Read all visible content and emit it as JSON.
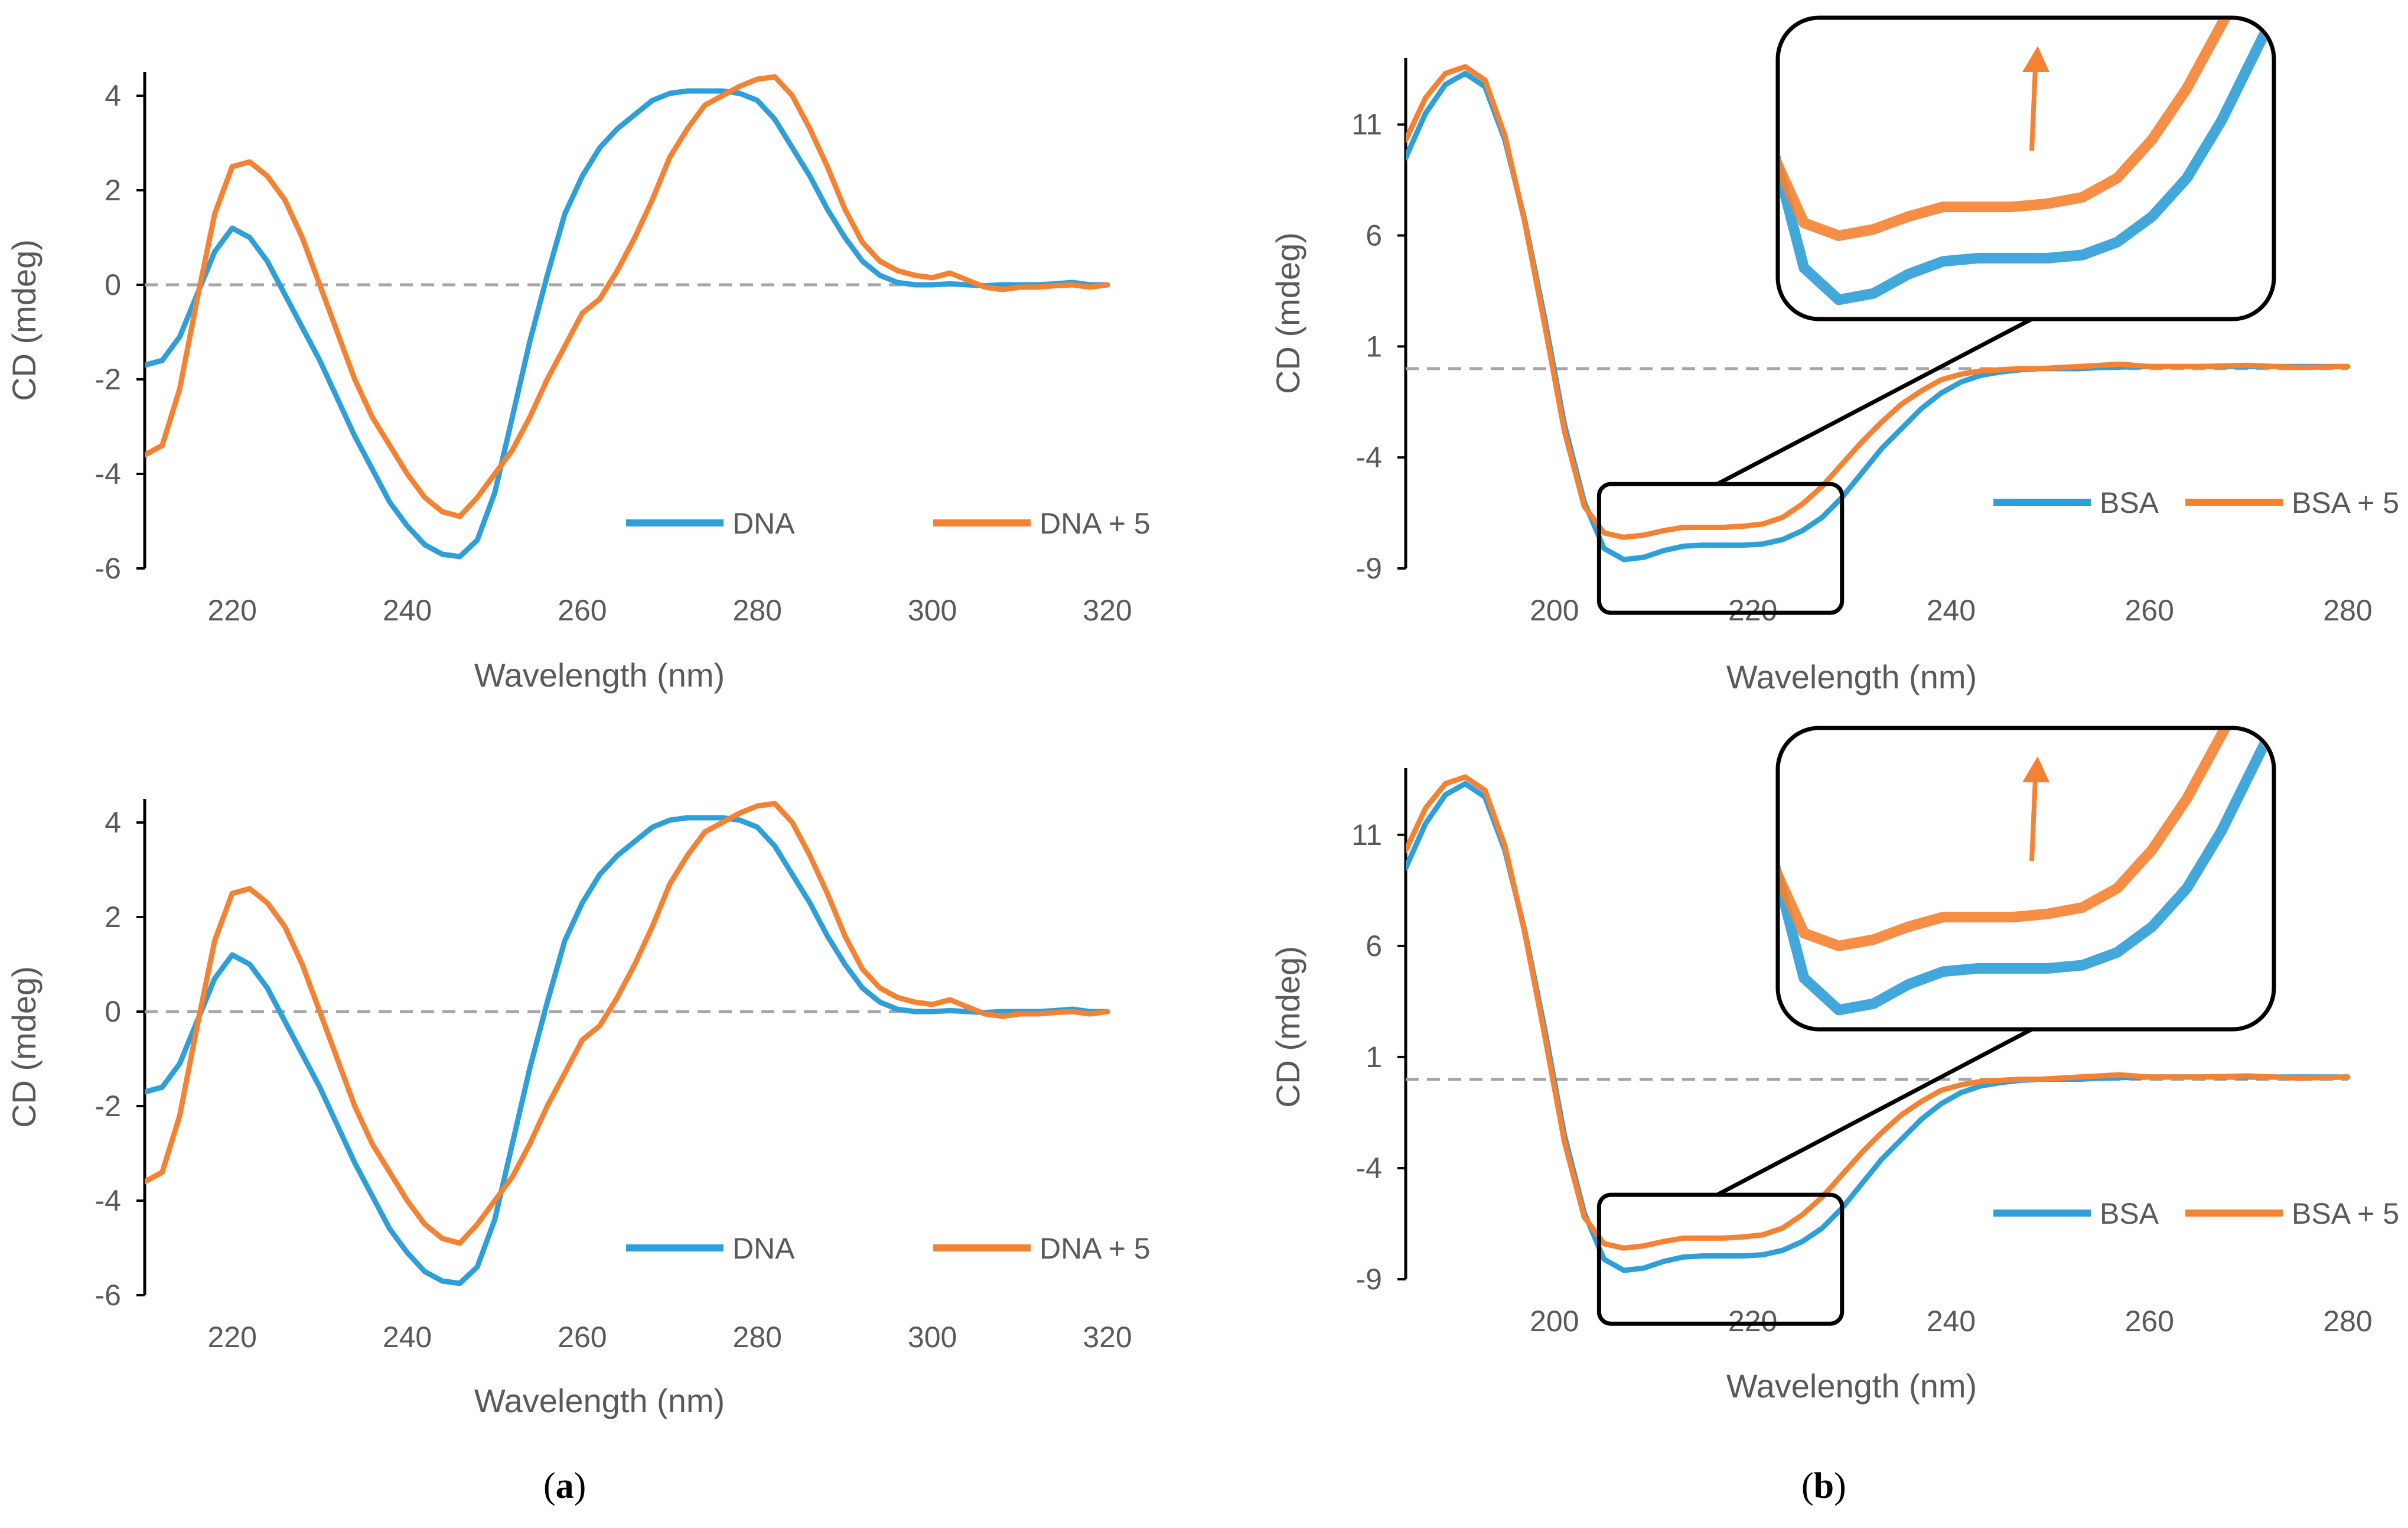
{
  "colors": {
    "series1": "#2E9FD8",
    "series2": "#F58232",
    "axis": "#000000",
    "zero_line": "#A6A6A6",
    "text": "#595959"
  },
  "panel_labels": [
    "a",
    "b"
  ],
  "chart_data": [
    {
      "type": "line",
      "panel": "a-top",
      "xlabel": "Wavelength (nm)",
      "ylabel": "CD (mdeg)",
      "xlim": [
        210,
        320
      ],
      "ylim": [
        -6,
        4.5
      ],
      "xticks": [
        220,
        240,
        260,
        280,
        300,
        320
      ],
      "yticks": [
        -6,
        -4,
        -2,
        0,
        2,
        4
      ],
      "zero_line": true,
      "legend_position": "bottom-right",
      "series": [
        {
          "name": "DNA",
          "x": [
            210,
            212,
            214,
            216,
            218,
            220,
            222,
            224,
            226,
            228,
            230,
            232,
            234,
            236,
            238,
            240,
            242,
            244,
            246,
            248,
            250,
            252,
            254,
            256,
            258,
            260,
            262,
            264,
            266,
            268,
            270,
            272,
            274,
            276,
            278,
            280,
            282,
            284,
            286,
            288,
            290,
            292,
            294,
            296,
            298,
            300,
            302,
            304,
            306,
            308,
            310,
            312,
            314,
            316,
            318,
            320
          ],
          "y": [
            -1.7,
            -1.6,
            -1.1,
            -0.2,
            0.7,
            1.2,
            1.0,
            0.5,
            -0.2,
            -0.9,
            -1.6,
            -2.4,
            -3.2,
            -3.9,
            -4.6,
            -5.1,
            -5.5,
            -5.7,
            -5.75,
            -5.4,
            -4.4,
            -2.8,
            -1.2,
            0.2,
            1.5,
            2.3,
            2.9,
            3.3,
            3.6,
            3.9,
            4.05,
            4.1,
            4.1,
            4.1,
            4.05,
            3.9,
            3.5,
            2.9,
            2.3,
            1.6,
            1.0,
            0.5,
            0.2,
            0.05,
            0.0,
            0.0,
            0.02,
            0.0,
            -0.02,
            0.0,
            0.0,
            0.0,
            0.02,
            0.05,
            0.0,
            0.0
          ]
        },
        {
          "name": "DNA + 5",
          "x": [
            210,
            212,
            214,
            216,
            218,
            220,
            222,
            224,
            226,
            228,
            230,
            232,
            234,
            236,
            238,
            240,
            242,
            244,
            246,
            248,
            250,
            252,
            254,
            256,
            258,
            260,
            262,
            264,
            266,
            268,
            270,
            272,
            274,
            276,
            278,
            280,
            282,
            284,
            286,
            288,
            290,
            292,
            294,
            296,
            298,
            300,
            302,
            304,
            306,
            308,
            310,
            312,
            314,
            316,
            318,
            320
          ],
          "y": [
            -3.6,
            -3.4,
            -2.2,
            -0.3,
            1.5,
            2.5,
            2.6,
            2.3,
            1.8,
            1.0,
            0.0,
            -1.0,
            -2.0,
            -2.8,
            -3.4,
            -4.0,
            -4.5,
            -4.8,
            -4.9,
            -4.5,
            -4.0,
            -3.5,
            -2.8,
            -2.0,
            -1.3,
            -0.6,
            -0.3,
            0.3,
            1.0,
            1.8,
            2.7,
            3.3,
            3.8,
            4.0,
            4.2,
            4.35,
            4.4,
            4.0,
            3.3,
            2.5,
            1.6,
            0.9,
            0.5,
            0.3,
            0.2,
            0.15,
            0.25,
            0.1,
            -0.05,
            -0.1,
            -0.05,
            -0.05,
            -0.02,
            0.0,
            -0.05,
            0.0
          ]
        }
      ]
    },
    {
      "type": "line",
      "panel": "b-top",
      "xlabel": "Wavelength (nm)",
      "ylabel": "CD (mdeg)",
      "xlim": [
        185,
        280
      ],
      "ylim": [
        -9,
        14
      ],
      "xticks": [
        200,
        220,
        240,
        260,
        280
      ],
      "yticks": [
        -9,
        -4,
        1,
        6,
        11
      ],
      "zero_line": true,
      "legend_position": "bottom-right",
      "series": [
        {
          "name": "BSA",
          "x": [
            185,
            187,
            189,
            191,
            193,
            195,
            197,
            199,
            201,
            203,
            205,
            207,
            209,
            211,
            213,
            215,
            217,
            219,
            221,
            223,
            225,
            227,
            229,
            231,
            233,
            235,
            237,
            239,
            241,
            243,
            245,
            247,
            249,
            251,
            253,
            255,
            260,
            265,
            270,
            275,
            280
          ],
          "y": [
            9.5,
            11.5,
            12.8,
            13.3,
            12.7,
            10.3,
            6.7,
            2.3,
            -2.5,
            -6.0,
            -8.1,
            -8.6,
            -8.5,
            -8.2,
            -8.0,
            -7.95,
            -7.95,
            -7.95,
            -7.9,
            -7.7,
            -7.3,
            -6.7,
            -5.8,
            -4.7,
            -3.6,
            -2.7,
            -1.8,
            -1.1,
            -0.6,
            -0.3,
            -0.15,
            -0.05,
            0.0,
            0.0,
            0.0,
            0.05,
            0.1,
            0.1,
            0.1,
            0.1,
            0.1
          ]
        },
        {
          "name": "BSA + 5",
          "x": [
            185,
            187,
            189,
            191,
            193,
            195,
            197,
            199,
            201,
            203,
            205,
            207,
            209,
            211,
            213,
            215,
            217,
            219,
            221,
            223,
            225,
            227,
            229,
            231,
            233,
            235,
            237,
            239,
            241,
            243,
            245,
            247,
            249,
            251,
            253,
            255,
            257,
            260,
            265,
            270,
            275,
            280
          ],
          "y": [
            10.3,
            12.2,
            13.3,
            13.6,
            13.0,
            10.5,
            6.6,
            2.0,
            -2.8,
            -6.2,
            -7.4,
            -7.6,
            -7.5,
            -7.3,
            -7.15,
            -7.15,
            -7.15,
            -7.1,
            -7.0,
            -6.7,
            -6.1,
            -5.3,
            -4.3,
            -3.3,
            -2.4,
            -1.6,
            -1.0,
            -0.5,
            -0.25,
            -0.1,
            -0.05,
            0.0,
            0.0,
            0.05,
            0.1,
            0.15,
            0.2,
            0.1,
            0.1,
            0.15,
            0.05,
            0.1
          ]
        }
      ]
    },
    {
      "type": "line",
      "panel": "a-bottom",
      "xlabel": "Wavelength (nm)",
      "ylabel": "CD (mdeg)",
      "xlim": [
        210,
        320
      ],
      "ylim": [
        -6,
        4.5
      ],
      "xticks": [
        220,
        240,
        260,
        280,
        300,
        320
      ],
      "yticks": [
        -6,
        -4,
        -2,
        0,
        2,
        4
      ],
      "zero_line": true,
      "legend_position": "bottom-right",
      "series": [
        {
          "name": "DNA",
          "x": [
            210,
            212,
            214,
            216,
            218,
            220,
            222,
            224,
            226,
            228,
            230,
            232,
            234,
            236,
            238,
            240,
            242,
            244,
            246,
            248,
            250,
            252,
            254,
            256,
            258,
            260,
            262,
            264,
            266,
            268,
            270,
            272,
            274,
            276,
            278,
            280,
            282,
            284,
            286,
            288,
            290,
            292,
            294,
            296,
            298,
            300,
            302,
            304,
            306,
            308,
            310,
            312,
            314,
            316,
            318,
            320
          ],
          "y": [
            -1.7,
            -1.6,
            -1.1,
            -0.2,
            0.7,
            1.2,
            1.0,
            0.5,
            -0.2,
            -0.9,
            -1.6,
            -2.4,
            -3.2,
            -3.9,
            -4.6,
            -5.1,
            -5.5,
            -5.7,
            -5.75,
            -5.4,
            -4.4,
            -2.8,
            -1.2,
            0.2,
            1.5,
            2.3,
            2.9,
            3.3,
            3.6,
            3.9,
            4.05,
            4.1,
            4.1,
            4.1,
            4.05,
            3.9,
            3.5,
            2.9,
            2.3,
            1.6,
            1.0,
            0.5,
            0.2,
            0.05,
            0.0,
            0.0,
            0.02,
            0.0,
            -0.02,
            0.0,
            0.0,
            0.0,
            0.02,
            0.05,
            0.0,
            0.0
          ]
        },
        {
          "name": "DNA + 5",
          "x": [
            210,
            212,
            214,
            216,
            218,
            220,
            222,
            224,
            226,
            228,
            230,
            232,
            234,
            236,
            238,
            240,
            242,
            244,
            246,
            248,
            250,
            252,
            254,
            256,
            258,
            260,
            262,
            264,
            266,
            268,
            270,
            272,
            274,
            276,
            278,
            280,
            282,
            284,
            286,
            288,
            290,
            292,
            294,
            296,
            298,
            300,
            302,
            304,
            306,
            308,
            310,
            312,
            314,
            316,
            318,
            320
          ],
          "y": [
            -3.6,
            -3.4,
            -2.2,
            -0.3,
            1.5,
            2.5,
            2.6,
            2.3,
            1.8,
            1.0,
            0.0,
            -1.0,
            -2.0,
            -2.8,
            -3.4,
            -4.0,
            -4.5,
            -4.8,
            -4.9,
            -4.5,
            -4.0,
            -3.5,
            -2.8,
            -2.0,
            -1.3,
            -0.6,
            -0.3,
            0.3,
            1.0,
            1.8,
            2.7,
            3.3,
            3.8,
            4.0,
            4.2,
            4.35,
            4.4,
            4.0,
            3.3,
            2.5,
            1.6,
            0.9,
            0.5,
            0.3,
            0.2,
            0.15,
            0.25,
            0.1,
            -0.05,
            -0.1,
            -0.05,
            -0.05,
            -0.02,
            0.0,
            -0.05,
            0.0
          ]
        }
      ]
    },
    {
      "type": "line",
      "panel": "b-bottom",
      "xlabel": "Wavelength (nm)",
      "ylabel": "CD (mdeg)",
      "xlim": [
        185,
        280
      ],
      "ylim": [
        -9,
        14
      ],
      "xticks": [
        200,
        220,
        240,
        260,
        280
      ],
      "yticks": [
        -9,
        -4,
        1,
        6,
        11
      ],
      "zero_line": true,
      "legend_position": "bottom-right",
      "series": [
        {
          "name": "BSA",
          "x": [
            185,
            187,
            189,
            191,
            193,
            195,
            197,
            199,
            201,
            203,
            205,
            207,
            209,
            211,
            213,
            215,
            217,
            219,
            221,
            223,
            225,
            227,
            229,
            231,
            233,
            235,
            237,
            239,
            241,
            243,
            245,
            247,
            249,
            251,
            253,
            255,
            260,
            265,
            270,
            275,
            280
          ],
          "y": [
            9.5,
            11.5,
            12.8,
            13.3,
            12.7,
            10.3,
            6.7,
            2.3,
            -2.5,
            -6.0,
            -8.1,
            -8.6,
            -8.5,
            -8.2,
            -8.0,
            -7.95,
            -7.95,
            -7.95,
            -7.9,
            -7.7,
            -7.3,
            -6.7,
            -5.8,
            -4.7,
            -3.6,
            -2.7,
            -1.8,
            -1.1,
            -0.6,
            -0.3,
            -0.15,
            -0.05,
            0.0,
            0.0,
            0.0,
            0.05,
            0.1,
            0.1,
            0.1,
            0.1,
            0.1
          ]
        },
        {
          "name": "BSA + 5",
          "x": [
            185,
            187,
            189,
            191,
            193,
            195,
            197,
            199,
            201,
            203,
            205,
            207,
            209,
            211,
            213,
            215,
            217,
            219,
            221,
            223,
            225,
            227,
            229,
            231,
            233,
            235,
            237,
            239,
            241,
            243,
            245,
            247,
            249,
            251,
            253,
            255,
            257,
            260,
            265,
            270,
            275,
            280
          ],
          "y": [
            10.3,
            12.2,
            13.3,
            13.6,
            13.0,
            10.5,
            6.6,
            2.0,
            -2.8,
            -6.2,
            -7.4,
            -7.6,
            -7.5,
            -7.3,
            -7.15,
            -7.15,
            -7.15,
            -7.1,
            -7.0,
            -6.7,
            -6.1,
            -5.3,
            -4.3,
            -3.3,
            -2.4,
            -1.6,
            -1.0,
            -0.5,
            -0.25,
            -0.1,
            -0.05,
            0.0,
            0.0,
            0.05,
            0.1,
            0.15,
            0.2,
            0.1,
            0.1,
            0.15,
            0.05,
            0.1
          ]
        }
      ]
    }
  ]
}
